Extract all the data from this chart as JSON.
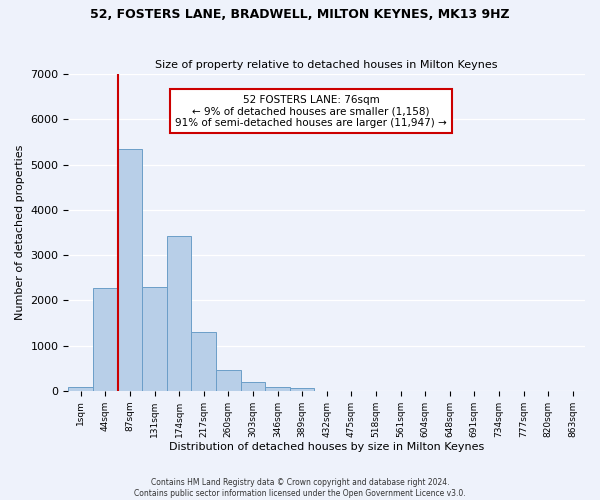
{
  "title1": "52, FOSTERS LANE, BRADWELL, MILTON KEYNES, MK13 9HZ",
  "title2": "Size of property relative to detached houses in Milton Keynes",
  "xlabel": "Distribution of detached houses by size in Milton Keynes",
  "ylabel": "Number of detached properties",
  "bar_values": [
    75,
    2280,
    5350,
    2290,
    3430,
    1310,
    460,
    190,
    80,
    60,
    0,
    0,
    0,
    0,
    0,
    0,
    0,
    0,
    0,
    0,
    0
  ],
  "bar_labels": [
    "1sqm",
    "44sqm",
    "87sqm",
    "131sqm",
    "174sqm",
    "217sqm",
    "260sqm",
    "303sqm",
    "346sqm",
    "389sqm",
    "432sqm",
    "475sqm",
    "518sqm",
    "561sqm",
    "604sqm",
    "648sqm",
    "691sqm",
    "734sqm",
    "777sqm",
    "820sqm",
    "863sqm"
  ],
  "bar_color": "#b8cfe8",
  "bar_edge_color": "#6b9ec8",
  "vline_color": "#cc0000",
  "vline_x": 1.5,
  "annotation_title": "52 FOSTERS LANE: 76sqm",
  "annotation_line1": "← 9% of detached houses are smaller (1,158)",
  "annotation_line2": "91% of semi-detached houses are larger (11,947) →",
  "annotation_box_color": "#ffffff",
  "annotation_box_edge": "#cc0000",
  "ylim": [
    0,
    7000
  ],
  "yticks": [
    0,
    1000,
    2000,
    3000,
    4000,
    5000,
    6000,
    7000
  ],
  "background_color": "#eef2fb",
  "grid_color": "#ffffff",
  "footer1": "Contains HM Land Registry data © Crown copyright and database right 2024.",
  "footer2": "Contains public sector information licensed under the Open Government Licence v3.0."
}
